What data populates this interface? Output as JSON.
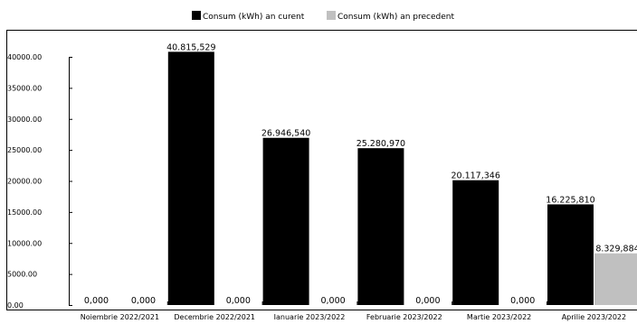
{
  "chart_data": {
    "type": "bar",
    "categories": [
      "Noiembrie 2022/2021",
      "Decembrie 2022/2021",
      "Ianuarie 2023/2022",
      "Februarie 2023/2022",
      "Martie 2023/2022",
      "Aprilie 2023/2022"
    ],
    "series": [
      {
        "name": "Consum (kWh) an curent",
        "color": "#000000",
        "values": [
          0,
          40815.529,
          26946.54,
          25280.97,
          20117.346,
          16225.81
        ],
        "labels": [
          "0,000",
          "40.815,529",
          "26.946,540",
          "25.280,970",
          "20.117,346",
          "16.225,810"
        ]
      },
      {
        "name": "Consum (kWh) an precedent",
        "color": "#c0c0c0",
        "values": [
          0,
          0,
          0,
          0,
          0,
          8329.884
        ],
        "labels": [
          "0,000",
          "0,000",
          "0,000",
          "0,000",
          "0,000",
          "8.329,884"
        ]
      }
    ],
    "yticks": [
      "0.00",
      "5000.00",
      "10000.00",
      "15000.00",
      "20000.00",
      "25000.00",
      "30000.00",
      "35000.00",
      "40000.00"
    ],
    "ylim": [
      0,
      40000
    ],
    "legend_position": "top-center",
    "grid": false
  }
}
